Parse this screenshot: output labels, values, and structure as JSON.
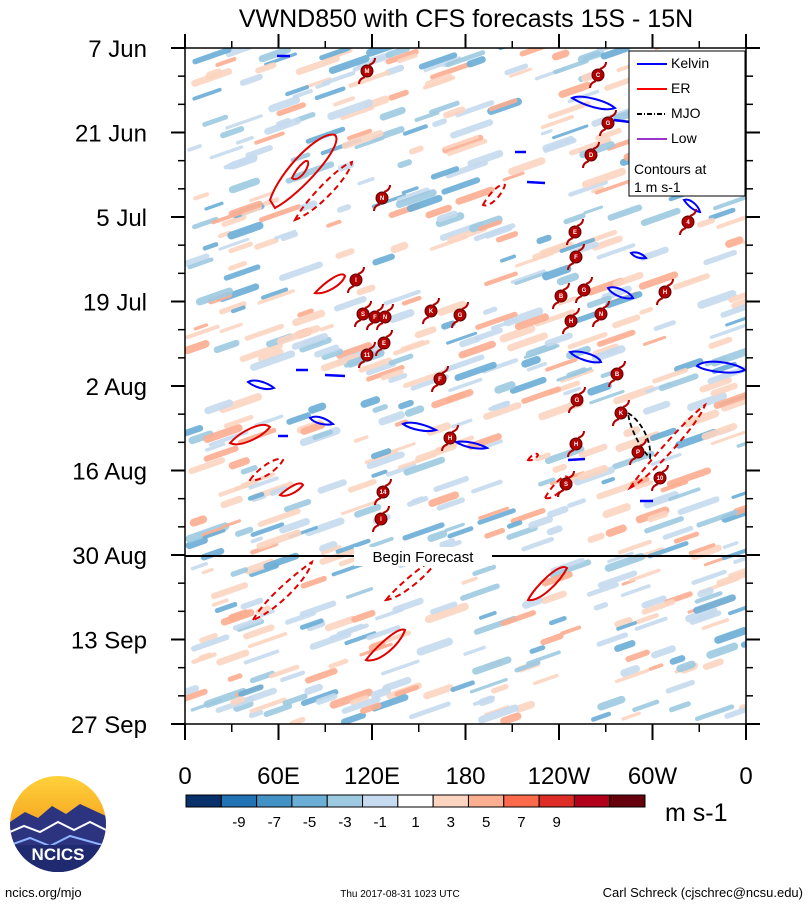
{
  "chart_data": {
    "type": "heatmap",
    "title": "VWND850 with CFS forecasts  15S - 15N",
    "y_ticks": [
      "7 Jun",
      "21 Jun",
      "5 Jul",
      "19 Jul",
      "2 Aug",
      "16 Aug",
      "30 Aug",
      "13 Sep",
      "27 Sep"
    ],
    "x_ticks": [
      "0",
      "60E",
      "120E",
      "180",
      "120W",
      "60W",
      "0"
    ],
    "forecast_label": "Begin Forecast",
    "forecast_start": "30 Aug",
    "colorbar": {
      "unit": "m s-1",
      "labels": [
        "-9",
        "-7",
        "-5",
        "-3",
        "-1",
        "1",
        "3",
        "5",
        "7",
        "9"
      ],
      "colors": [
        "#08306b",
        "#2171b5",
        "#4292c6",
        "#6baed6",
        "#9ecae1",
        "#c6dbef",
        "#ffffff",
        "#fcd5c1",
        "#fcae91",
        "#fb6a4a",
        "#de2d26",
        "#b3001a",
        "#67000d"
      ]
    },
    "legend": {
      "entries": [
        {
          "name": "Kelvin",
          "color": "#0000ff"
        },
        {
          "name": "ER",
          "color": "#ff0000"
        },
        {
          "name": "MJO",
          "color": "#000000"
        },
        {
          "name": "Low",
          "color": "#9933cc"
        }
      ],
      "note_line1": "Contours at",
      "note_line2": "1 m s-1",
      "position": "top-right"
    },
    "storm_labels": [
      "M",
      "C",
      "G",
      "D",
      "N",
      "4",
      "E",
      "F",
      "I",
      "B",
      "G",
      "H",
      "S",
      "F",
      "N",
      "K",
      "G",
      "H",
      "N",
      "E",
      "11",
      "F",
      "B",
      "G",
      "K",
      "H",
      "H",
      "P",
      "S",
      "10",
      "14",
      "I"
    ]
  },
  "footer": {
    "logo_text": "NCICS",
    "url": "ncics.org/mjo",
    "timestamp": "Thu 2017-08-31 1023 UTC",
    "author": "Carl Schreck (cjschrec@ncsu.edu)"
  }
}
